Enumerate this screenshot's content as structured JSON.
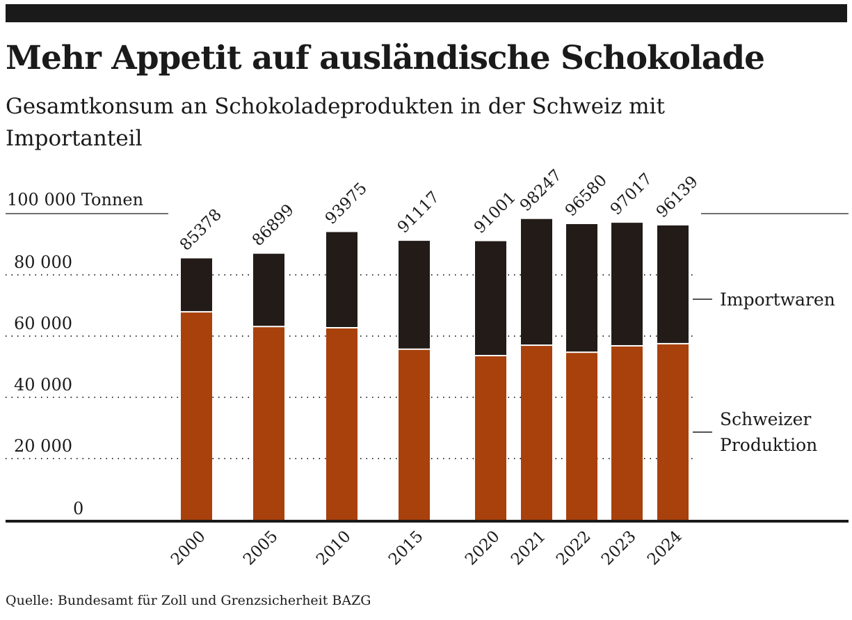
{
  "header": {
    "title": "Mehr Appetit auf ausländische Schokolade",
    "subtitle": "Gesamtkonsum an Schokoladeprodukten in der Schweiz mit Importanteil"
  },
  "source": "Quelle: Bundesamt für Zoll und Grenzsicherheit BAZG",
  "chart_data": {
    "type": "bar",
    "stacked": true,
    "unit_label": "Tonnen",
    "categories": [
      "2000",
      "2005",
      "2010",
      "2015",
      "2020",
      "2021",
      "2022",
      "2023",
      "2024"
    ],
    "totals": [
      85378,
      86899,
      93975,
      91117,
      91001,
      98247,
      96580,
      97017,
      96139
    ],
    "total_labels": [
      "85378",
      "86899",
      "93975",
      "91117",
      "91001",
      "98247",
      "96580",
      "97017",
      "96139"
    ],
    "series": [
      {
        "name": "Schweizer Produktion",
        "color": "#a8410c",
        "values": [
          67700,
          62900,
          62500,
          55500,
          53400,
          56800,
          54500,
          56600,
          57300
        ]
      },
      {
        "name": "Importwaren",
        "color": "#221b17",
        "values": [
          17678,
          23999,
          31475,
          35617,
          37601,
          41447,
          42080,
          40417,
          38839
        ]
      }
    ],
    "legend_labels": {
      "import": "Importwaren",
      "swiss_line1": "Schweizer",
      "swiss_line2": "Produktion"
    },
    "yticks": [
      0,
      20000,
      40000,
      60000,
      80000,
      100000
    ],
    "ytick_labels": [
      "0",
      "20 000",
      "40 000",
      "60 000",
      "80 000",
      "100 000"
    ],
    "ylim": [
      0,
      100000
    ],
    "grid": "dotted horizontal"
  }
}
